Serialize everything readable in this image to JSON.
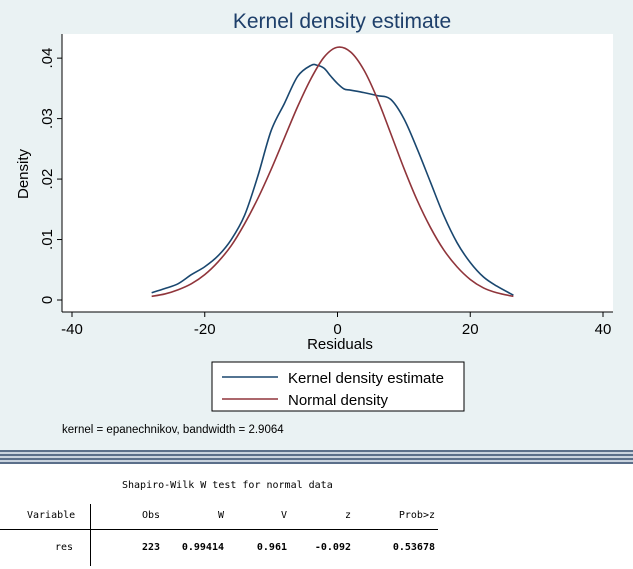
{
  "chart_data": {
    "type": "line",
    "title": "Kernel density estimate",
    "xlabel": "Residuals",
    "ylabel": "Density",
    "xlim": [
      -40,
      40
    ],
    "ylim": [
      0,
      0.043
    ],
    "x_ticks": [
      -40,
      -20,
      0,
      20,
      40
    ],
    "x_tick_labels": [
      "-40",
      "-20",
      "0",
      "20",
      "40"
    ],
    "y_ticks": [
      0,
      0.01,
      0.02,
      0.03,
      0.04
    ],
    "y_tick_labels": [
      "0",
      ".01",
      ".02",
      ".03",
      ".04"
    ],
    "grid": false,
    "legend_position": "bottom",
    "series": [
      {
        "name": "Kernel density estimate",
        "color": "#1a476f",
        "x": [
          -28,
          -26,
          -24,
          -22,
          -20,
          -18,
          -16,
          -14,
          -12,
          -10,
          -8,
          -6,
          -4,
          -3,
          -2,
          -1,
          0,
          1,
          2,
          4,
          6,
          8,
          10,
          12,
          14,
          16,
          18,
          20,
          22,
          24,
          26.5
        ],
        "y": [
          0.0012,
          0.0019,
          0.0027,
          0.0042,
          0.0055,
          0.0073,
          0.01,
          0.014,
          0.0205,
          0.028,
          0.0325,
          0.037,
          0.0388,
          0.0388,
          0.0383,
          0.037,
          0.0358,
          0.0349,
          0.0347,
          0.0343,
          0.0338,
          0.0332,
          0.03,
          0.025,
          0.0195,
          0.014,
          0.0095,
          0.0062,
          0.0038,
          0.0023,
          0.0008
        ]
      },
      {
        "name": "Normal density",
        "color": "#90353b",
        "x": [
          -28,
          -26,
          -24,
          -22,
          -20,
          -18,
          -16,
          -14,
          -12,
          -10,
          -8,
          -6,
          -4,
          -2,
          0,
          2,
          4,
          6,
          8,
          10,
          12,
          14,
          16,
          18,
          20,
          22,
          24,
          26.5
        ],
        "y": [
          0.0006,
          0.001,
          0.0017,
          0.0027,
          0.0042,
          0.0063,
          0.009,
          0.0126,
          0.0168,
          0.0216,
          0.0268,
          0.032,
          0.0366,
          0.0402,
          0.0418,
          0.041,
          0.038,
          0.0333,
          0.0276,
          0.0218,
          0.0165,
          0.012,
          0.0083,
          0.0055,
          0.0034,
          0.002,
          0.0012,
          0.0006
        ]
      }
    ]
  },
  "note": "kernel = epanechnikov, bandwidth = 2.9064",
  "results": {
    "title": "Shapiro-Wilk W test for normal data",
    "headers": [
      "Variable",
      "Obs",
      "W",
      "V",
      "z",
      "Prob>z"
    ],
    "row": [
      "res",
      "223",
      "0.99414",
      "0.961",
      "-0.092",
      "0.53678"
    ]
  }
}
